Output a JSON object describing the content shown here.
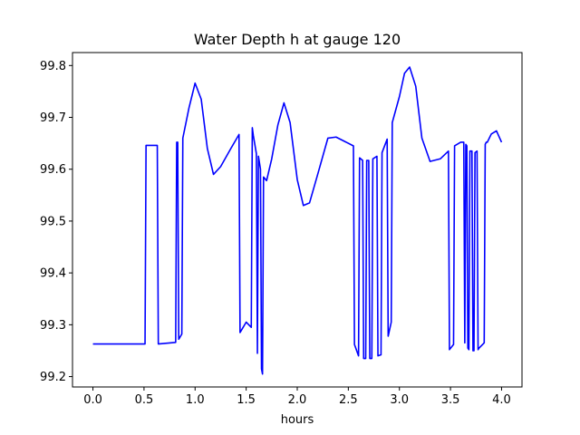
{
  "chart_data": {
    "type": "line",
    "title": "Water Depth h at gauge 120",
    "xlabel": "hours",
    "ylabel": "",
    "xlim": [
      -0.2,
      4.2
    ],
    "ylim": [
      99.18,
      99.825
    ],
    "xticks": [
      0.0,
      0.5,
      1.0,
      1.5,
      2.0,
      2.5,
      3.0,
      3.5,
      4.0
    ],
    "xtick_labels": [
      "0.0",
      "0.5",
      "1.0",
      "1.5",
      "2.0",
      "2.5",
      "3.0",
      "3.5",
      "4.0"
    ],
    "yticks": [
      99.2,
      99.3,
      99.4,
      99.5,
      99.6,
      99.7,
      99.8
    ],
    "ytick_labels": [
      "99.2",
      "99.3",
      "99.4",
      "99.5",
      "99.6",
      "99.7",
      "99.8"
    ],
    "grid": false,
    "legend": "none",
    "series": [
      {
        "color": "#0000ff",
        "x": [
          0.0,
          0.51,
          0.52,
          0.63,
          0.64,
          0.81,
          0.82,
          0.83,
          0.84,
          0.87,
          0.88,
          0.94,
          1.0,
          1.06,
          1.12,
          1.18,
          1.25,
          1.35,
          1.43,
          1.44,
          1.5,
          1.55,
          1.56,
          1.57,
          1.6,
          1.61,
          1.62,
          1.64,
          1.65,
          1.66,
          1.67,
          1.7,
          1.75,
          1.81,
          1.87,
          1.93,
          2.0,
          2.06,
          2.12,
          2.2,
          2.3,
          2.38,
          2.45,
          2.55,
          2.56,
          2.6,
          2.61,
          2.64,
          2.65,
          2.67,
          2.68,
          2.7,
          2.71,
          2.73,
          2.74,
          2.78,
          2.79,
          2.82,
          2.83,
          2.88,
          2.89,
          2.92,
          2.93,
          3.0,
          3.05,
          3.1,
          3.16,
          3.22,
          3.3,
          3.4,
          3.48,
          3.49,
          3.53,
          3.54,
          3.6,
          3.63,
          3.64,
          3.65,
          3.66,
          3.67,
          3.68,
          3.69,
          3.71,
          3.72,
          3.73,
          3.74,
          3.76,
          3.77,
          3.78,
          3.83,
          3.84,
          3.85,
          3.86,
          3.9,
          3.95,
          4.0
        ],
        "y": [
          99.263,
          99.263,
          99.646,
          99.646,
          99.263,
          99.266,
          99.652,
          99.652,
          99.272,
          99.282,
          99.66,
          99.718,
          99.766,
          99.735,
          99.64,
          99.59,
          99.605,
          99.64,
          99.667,
          99.285,
          99.305,
          99.295,
          99.68,
          99.665,
          99.63,
          99.245,
          99.625,
          99.6,
          99.215,
          99.205,
          99.585,
          99.578,
          99.62,
          99.685,
          99.728,
          99.69,
          99.58,
          99.53,
          99.535,
          99.59,
          99.66,
          99.662,
          99.655,
          99.645,
          99.262,
          99.24,
          99.622,
          99.617,
          99.235,
          99.235,
          99.617,
          99.617,
          99.235,
          99.235,
          99.62,
          99.625,
          99.24,
          99.242,
          99.632,
          99.658,
          99.278,
          99.305,
          99.69,
          99.74,
          99.785,
          99.797,
          99.76,
          99.66,
          99.615,
          99.62,
          99.635,
          99.252,
          99.262,
          99.645,
          99.652,
          99.652,
          99.265,
          99.648,
          99.645,
          99.255,
          99.252,
          99.635,
          99.635,
          99.25,
          99.25,
          99.632,
          99.635,
          99.252,
          99.255,
          99.265,
          99.648,
          99.652,
          99.652,
          99.668,
          99.674,
          99.652
        ]
      }
    ]
  }
}
